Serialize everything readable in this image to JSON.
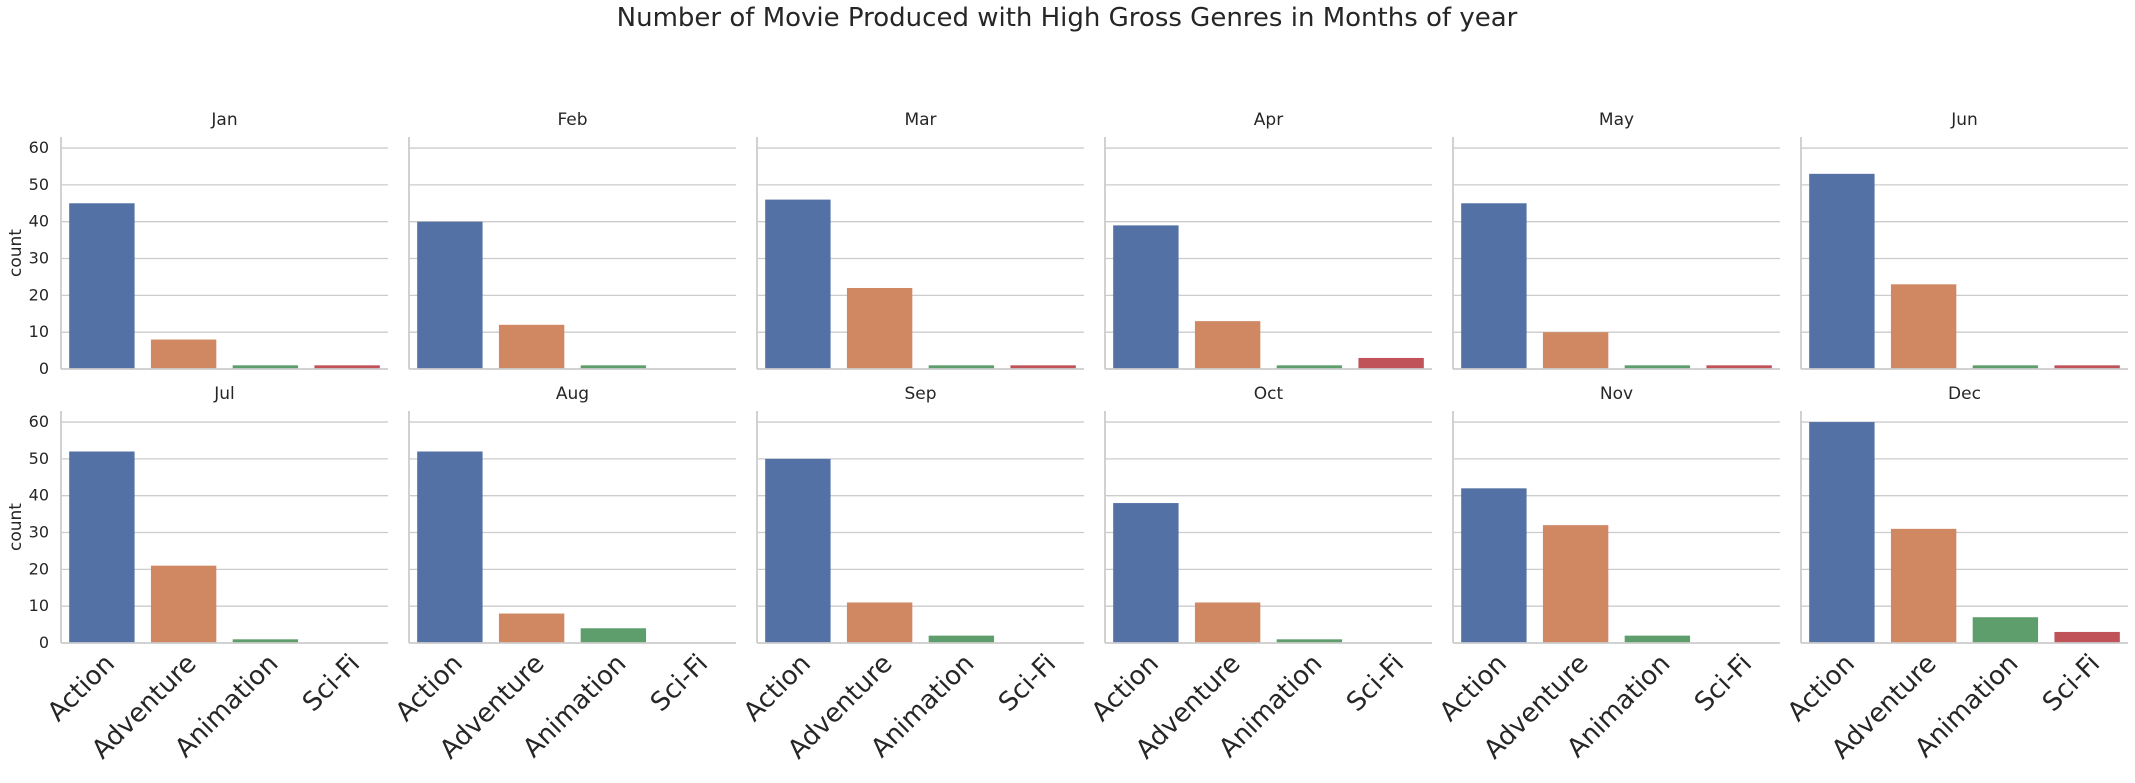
{
  "chart_data": {
    "type": "bar",
    "title": "Number of Movie Produced with High Gross Genres in Months of year",
    "ylabel": "count",
    "xlabel": "",
    "ylim": [
      0,
      63
    ],
    "yticks": [
      0,
      10,
      20,
      30,
      40,
      50,
      60
    ],
    "categories": [
      "Action",
      "Adventure",
      "Animation",
      "Sci-Fi"
    ],
    "colors": [
      "#5471a6",
      "#cf8862",
      "#5d9e6c",
      "#c0525a"
    ],
    "grid": true,
    "legend": "none",
    "panels": [
      {
        "name": "Jan",
        "values": [
          45,
          8,
          1,
          1
        ]
      },
      {
        "name": "Feb",
        "values": [
          40,
          12,
          1,
          0
        ]
      },
      {
        "name": "Mar",
        "values": [
          46,
          22,
          1,
          1
        ]
      },
      {
        "name": "Apr",
        "values": [
          39,
          13,
          1,
          3
        ]
      },
      {
        "name": "May",
        "values": [
          45,
          10,
          1,
          1
        ]
      },
      {
        "name": "Jun",
        "values": [
          53,
          23,
          1,
          1
        ]
      },
      {
        "name": "Jul",
        "values": [
          52,
          21,
          1,
          0
        ]
      },
      {
        "name": "Aug",
        "values": [
          52,
          8,
          4,
          0
        ]
      },
      {
        "name": "Sep",
        "values": [
          50,
          11,
          2,
          0
        ]
      },
      {
        "name": "Oct",
        "values": [
          38,
          11,
          1,
          0
        ]
      },
      {
        "name": "Nov",
        "values": [
          42,
          32,
          2,
          0
        ]
      },
      {
        "name": "Dec",
        "values": [
          60,
          31,
          7,
          3
        ]
      }
    ]
  }
}
